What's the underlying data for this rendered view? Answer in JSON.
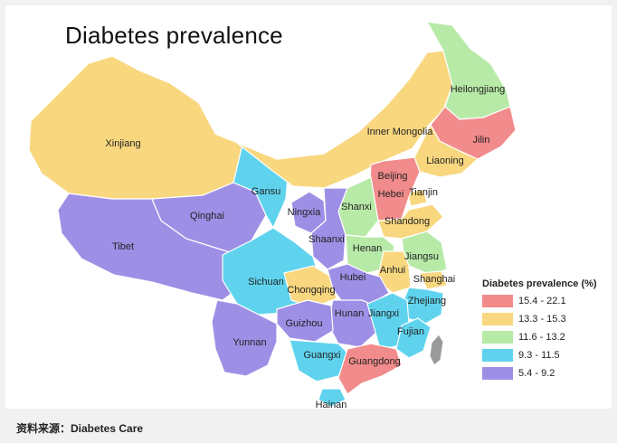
{
  "map": {
    "title": "Diabetes prevalence",
    "legend": {
      "title": "Diabetes prevalence (%)",
      "items": [
        {
          "label": "15.4 - 22.1",
          "color": "#f28b8b"
        },
        {
          "label": "13.3 - 15.3",
          "color": "#f8d77f"
        },
        {
          "label": "11.6 - 13.2",
          "color": "#b7eaa7"
        },
        {
          "label": "9.3 - 11.5",
          "color": "#5fd3ee"
        },
        {
          "label": "5.4 - 9.2",
          "color": "#9e8fe6"
        }
      ]
    },
    "regions": [
      {
        "name": "Xinjiang",
        "class": 1
      },
      {
        "name": "Tibet",
        "class": 4
      },
      {
        "name": "Qinghai",
        "class": 4
      },
      {
        "name": "Gansu",
        "class": 3
      },
      {
        "name": "Inner Mongolia",
        "class": 1
      },
      {
        "name": "Heilongjiang",
        "class": 2
      },
      {
        "name": "Jilin",
        "class": 0
      },
      {
        "name": "Liaoning",
        "class": 1
      },
      {
        "name": "Beijing",
        "class": 0
      },
      {
        "name": "Tianjin",
        "class": 1
      },
      {
        "name": "Hebei",
        "class": 0
      },
      {
        "name": "Shanxi",
        "class": 2
      },
      {
        "name": "Shandong",
        "class": 1
      },
      {
        "name": "Ningxia",
        "class": 4
      },
      {
        "name": "Shaanxi",
        "class": 4
      },
      {
        "name": "Henan",
        "class": 2
      },
      {
        "name": "Jiangsu",
        "class": 2
      },
      {
        "name": "Anhui",
        "class": 1
      },
      {
        "name": "Shanghai",
        "class": 1
      },
      {
        "name": "Sichuan",
        "class": 3
      },
      {
        "name": "Chongqing",
        "class": 1
      },
      {
        "name": "Hubei",
        "class": 4
      },
      {
        "name": "Zhejiang",
        "class": 3
      },
      {
        "name": "Hunan",
        "class": 4
      },
      {
        "name": "Jiangxi",
        "class": 3
      },
      {
        "name": "Guizhou",
        "class": 4
      },
      {
        "name": "Fujian",
        "class": 3
      },
      {
        "name": "Yunnan",
        "class": 4
      },
      {
        "name": "Guangxi",
        "class": 3
      },
      {
        "name": "Guangdong",
        "class": 0
      },
      {
        "name": "Hainan",
        "class": 3
      }
    ]
  },
  "footer": {
    "source": "资料来源：Diabetes Care"
  }
}
